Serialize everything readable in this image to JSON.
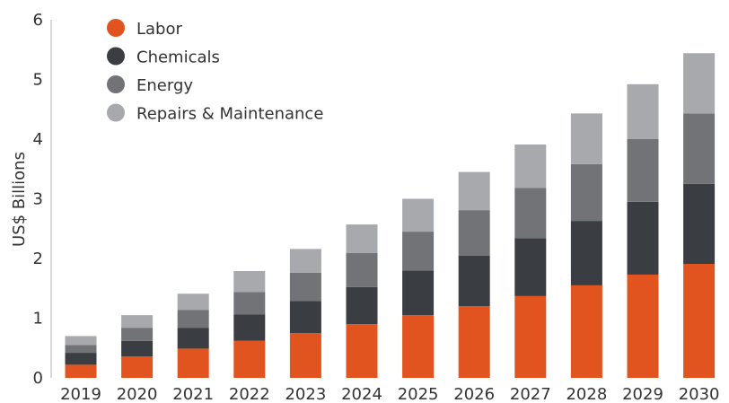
{
  "chart_data": {
    "type": "bar",
    "stacked": true,
    "categories": [
      "2019",
      "2020",
      "2021",
      "2022",
      "2023",
      "2024",
      "2025",
      "2026",
      "2027",
      "2028",
      "2029",
      "2030"
    ],
    "series": [
      {
        "name": "Labor",
        "color": "#e2541f",
        "values": [
          0.22,
          0.36,
          0.49,
          0.62,
          0.75,
          0.9,
          1.05,
          1.2,
          1.37,
          1.55,
          1.73,
          1.91
        ]
      },
      {
        "name": "Chemicals",
        "color": "#3a3d42",
        "values": [
          0.2,
          0.26,
          0.35,
          0.44,
          0.54,
          0.62,
          0.75,
          0.85,
          0.97,
          1.08,
          1.22,
          1.34
        ]
      },
      {
        "name": "Energy",
        "color": "#727377",
        "values": [
          0.13,
          0.22,
          0.3,
          0.38,
          0.47,
          0.57,
          0.65,
          0.76,
          0.84,
          0.95,
          1.05,
          1.18
        ]
      },
      {
        "name": "Repairs & Maintenance",
        "color": "#a8a9ac",
        "values": [
          0.15,
          0.21,
          0.27,
          0.35,
          0.4,
          0.48,
          0.55,
          0.64,
          0.73,
          0.85,
          0.92,
          1.01
        ]
      }
    ],
    "ylabel": "US$ Billions",
    "xlabel": "",
    "ylim": [
      0,
      6
    ],
    "yticks": [
      "0",
      "1",
      "2",
      "3",
      "4",
      "5",
      "6"
    ],
    "grid": false,
    "legend_position": "top-left"
  }
}
